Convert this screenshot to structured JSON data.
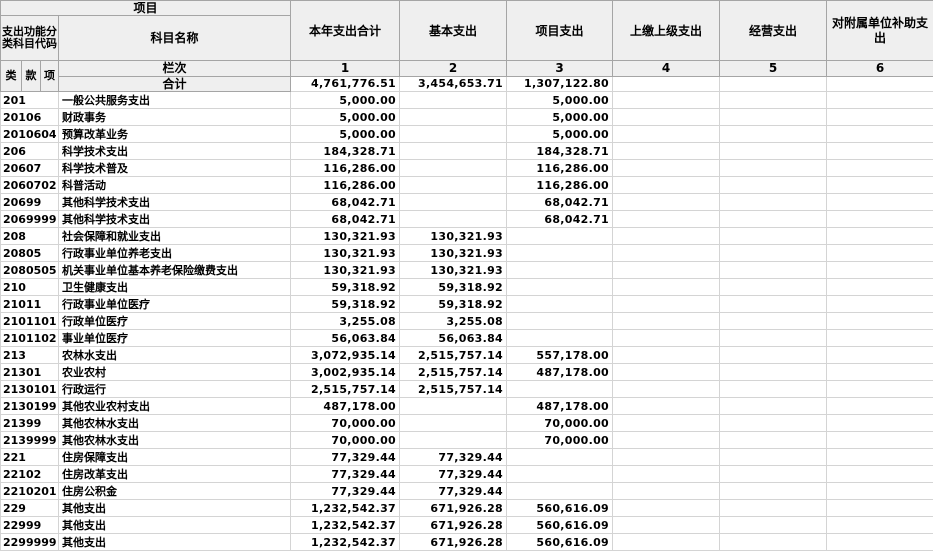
{
  "table": {
    "header": {
      "project_label": "项目",
      "code_label": "支出功能分类科目代码",
      "subject_name_label": "科目名称",
      "code_sub": [
        "类",
        "款",
        "项"
      ],
      "col_headers": [
        "本年支出合计",
        "基本支出",
        "项目支出",
        "上缴上级支出",
        "经营支出",
        "对附属单位补助支出"
      ],
      "lanci_label": "栏次",
      "col_numbers": [
        "1",
        "2",
        "3",
        "4",
        "5",
        "6"
      ]
    },
    "total_row": {
      "label": "合计",
      "values": [
        "4,761,776.51",
        "3,454,653.71",
        "1,307,122.80",
        "",
        "",
        ""
      ]
    },
    "rows": [
      {
        "code": "201",
        "name": "一般公共服务支出",
        "values": [
          "5,000.00",
          "",
          "5,000.00",
          "",
          "",
          ""
        ]
      },
      {
        "code": "20106",
        "name": "财政事务",
        "values": [
          "5,000.00",
          "",
          "5,000.00",
          "",
          "",
          ""
        ]
      },
      {
        "code": "2010604",
        "name": "预算改革业务",
        "values": [
          "5,000.00",
          "",
          "5,000.00",
          "",
          "",
          ""
        ]
      },
      {
        "code": "206",
        "name": "科学技术支出",
        "values": [
          "184,328.71",
          "",
          "184,328.71",
          "",
          "",
          ""
        ]
      },
      {
        "code": "20607",
        "name": "科学技术普及",
        "values": [
          "116,286.00",
          "",
          "116,286.00",
          "",
          "",
          ""
        ]
      },
      {
        "code": "2060702",
        "name": "科普活动",
        "values": [
          "116,286.00",
          "",
          "116,286.00",
          "",
          "",
          ""
        ]
      },
      {
        "code": "20699",
        "name": "其他科学技术支出",
        "values": [
          "68,042.71",
          "",
          "68,042.71",
          "",
          "",
          ""
        ]
      },
      {
        "code": "2069999",
        "name": "其他科学技术支出",
        "values": [
          "68,042.71",
          "",
          "68,042.71",
          "",
          "",
          ""
        ]
      },
      {
        "code": "208",
        "name": "社会保障和就业支出",
        "values": [
          "130,321.93",
          "130,321.93",
          "",
          "",
          "",
          ""
        ]
      },
      {
        "code": "20805",
        "name": "行政事业单位养老支出",
        "values": [
          "130,321.93",
          "130,321.93",
          "",
          "",
          "",
          ""
        ]
      },
      {
        "code": "2080505",
        "name": "机关事业单位基本养老保险缴费支出",
        "values": [
          "130,321.93",
          "130,321.93",
          "",
          "",
          "",
          ""
        ]
      },
      {
        "code": "210",
        "name": "卫生健康支出",
        "values": [
          "59,318.92",
          "59,318.92",
          "",
          "",
          "",
          ""
        ]
      },
      {
        "code": "21011",
        "name": "行政事业单位医疗",
        "values": [
          "59,318.92",
          "59,318.92",
          "",
          "",
          "",
          ""
        ]
      },
      {
        "code": "2101101",
        "name": "行政单位医疗",
        "values": [
          "3,255.08",
          "3,255.08",
          "",
          "",
          "",
          ""
        ]
      },
      {
        "code": "2101102",
        "name": "事业单位医疗",
        "values": [
          "56,063.84",
          "56,063.84",
          "",
          "",
          "",
          ""
        ]
      },
      {
        "code": "213",
        "name": "农林水支出",
        "values": [
          "3,072,935.14",
          "2,515,757.14",
          "557,178.00",
          "",
          "",
          ""
        ]
      },
      {
        "code": "21301",
        "name": "农业农村",
        "values": [
          "3,002,935.14",
          "2,515,757.14",
          "487,178.00",
          "",
          "",
          ""
        ]
      },
      {
        "code": "2130101",
        "name": "行政运行",
        "values": [
          "2,515,757.14",
          "2,515,757.14",
          "",
          "",
          "",
          ""
        ]
      },
      {
        "code": "2130199",
        "name": "其他农业农村支出",
        "values": [
          "487,178.00",
          "",
          "487,178.00",
          "",
          "",
          ""
        ]
      },
      {
        "code": "21399",
        "name": "其他农林水支出",
        "values": [
          "70,000.00",
          "",
          "70,000.00",
          "",
          "",
          ""
        ]
      },
      {
        "code": "2139999",
        "name": "其他农林水支出",
        "values": [
          "70,000.00",
          "",
          "70,000.00",
          "",
          "",
          ""
        ]
      },
      {
        "code": "221",
        "name": "住房保障支出",
        "values": [
          "77,329.44",
          "77,329.44",
          "",
          "",
          "",
          ""
        ]
      },
      {
        "code": "22102",
        "name": "住房改革支出",
        "values": [
          "77,329.44",
          "77,329.44",
          "",
          "",
          "",
          ""
        ]
      },
      {
        "code": "2210201",
        "name": "住房公积金",
        "values": [
          "77,329.44",
          "77,329.44",
          "",
          "",
          "",
          ""
        ]
      },
      {
        "code": "229",
        "name": "其他支出",
        "values": [
          "1,232,542.37",
          "671,926.28",
          "560,616.09",
          "",
          "",
          ""
        ]
      },
      {
        "code": "22999",
        "name": "其他支出",
        "values": [
          "1,232,542.37",
          "671,926.28",
          "560,616.09",
          "",
          "",
          ""
        ]
      },
      {
        "code": "2299999",
        "name": "其他支出",
        "values": [
          "1,232,542.37",
          "671,926.28",
          "560,616.09",
          "",
          "",
          ""
        ]
      }
    ],
    "colors": {
      "header_bg": "#efefef",
      "header_border": "#a5a5a5",
      "grid_border": "#d4d4d4",
      "text": "#000000"
    }
  }
}
